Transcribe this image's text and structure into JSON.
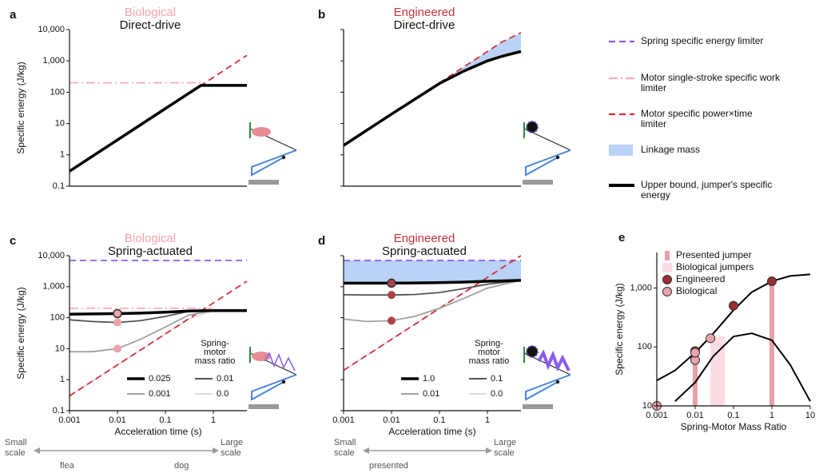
{
  "chart_data": [
    {
      "type": "line",
      "panel": "a",
      "title": "Biological",
      "title_color": "#f2a3ad",
      "subtitle": "Direct-drive",
      "ylabel": "Specific energy (J/kg)",
      "xscale": "log",
      "yscale": "log",
      "xlim": [
        0.001,
        5
      ],
      "ylim": [
        0.1,
        10000
      ],
      "yticks": [
        0.1,
        1,
        10,
        100,
        {
          "value": 1000,
          "label": "1,000"
        },
        {
          "value": 10000,
          "label": "10,000"
        }
      ],
      "ytick_labels": true,
      "x": [
        0.001,
        0.01,
        0.1,
        0.55,
        1,
        5
      ],
      "series": [
        {
          "color": "#f5aeb8",
          "style": "dashdot",
          "values": [
            200,
            200,
            200,
            200,
            null,
            null
          ]
        },
        {
          "color": "#d5303b",
          "style": "dashed",
          "values": [
            0.3,
            3,
            30,
            165,
            300,
            1500
          ]
        },
        {
          "color": "#000000",
          "style": "solid",
          "width": 3.5,
          "values": [
            0.3,
            3,
            30,
            165,
            165,
            165
          ]
        }
      ]
    },
    {
      "type": "line",
      "panel": "b",
      "title": "Engineered",
      "title_color": "#c8323c",
      "subtitle": "Direct-drive",
      "xscale": "log",
      "yscale": "log",
      "xlim": [
        0.001,
        5
      ],
      "ylim": [
        0.1,
        10000
      ],
      "yticks": [
        0.1,
        1,
        10,
        100,
        1000,
        10000
      ],
      "ytick_labels": false,
      "x": [
        0.001,
        0.01,
        0.1,
        0.3,
        1,
        2,
        5
      ],
      "series": [
        {
          "color": "#d5303b",
          "style": "dashed",
          "fill_below": "#b9d2f5",
          "values": [
            2,
            20,
            200,
            600,
            2000,
            4000,
            8000
          ]
        },
        {
          "color": "#000000",
          "style": "solid",
          "width": 3.5,
          "values": [
            2,
            20,
            190,
            450,
            1000,
            1400,
            2000
          ]
        }
      ]
    },
    {
      "type": "line",
      "panel": "c",
      "title": "Biological",
      "title_color": "#f2a3ad",
      "subtitle": "Spring-actuated",
      "ylabel": "Specific energy (J/kg)",
      "xlabel": "Acceleration time (s)",
      "xscale": "log",
      "yscale": "log",
      "xlim": [
        0.001,
        5
      ],
      "ylim": [
        0.1,
        10000
      ],
      "xticks": [
        0.001,
        0.01,
        0.1,
        1
      ],
      "yticks": [
        0.1,
        1,
        10,
        100,
        {
          "value": 1000,
          "label": "1,000"
        },
        {
          "value": 10000,
          "label": "10,000"
        }
      ],
      "ytick_labels": true,
      "legend": "lower right",
      "legend_title": [
        "Spring-",
        "motor",
        "mass ratio"
      ],
      "x": [
        0.001,
        0.003,
        0.01,
        0.03,
        0.1,
        0.3,
        1,
        5
      ],
      "series": [
        {
          "color": "#8b5cf0",
          "style": "dashed",
          "values": [
            7000,
            7000,
            7000,
            7000,
            7000,
            7000,
            7000,
            7000
          ]
        },
        {
          "color": "#f5aeb8",
          "style": "dashdot",
          "values": [
            200,
            200,
            200,
            200,
            200,
            200,
            200,
            null
          ]
        },
        {
          "color": "#dddddd",
          "style": "solid",
          "name": "0.0",
          "values": [
            0.3,
            0.9,
            3,
            9,
            30,
            90,
            170,
            170
          ]
        },
        {
          "color": "#d5303b",
          "style": "dashed",
          "values": [
            0.3,
            0.9,
            3,
            9,
            30,
            90,
            300,
            1500
          ]
        },
        {
          "color": "#a0a0a0",
          "style": "solid",
          "name": "0.001",
          "values": [
            8,
            8,
            10,
            20,
            50,
            120,
            170,
            170
          ]
        },
        {
          "color": "#555555",
          "style": "solid",
          "name": "0.01",
          "values": [
            85,
            75,
            70,
            80,
            110,
            160,
            170,
            170
          ]
        },
        {
          "color": "#000000",
          "style": "solid",
          "width": 3.5,
          "name": "0.025",
          "values": [
            130,
            132,
            135,
            140,
            150,
            165,
            170,
            170
          ]
        }
      ],
      "legend_order": [
        6,
        5,
        4,
        2
      ],
      "markers": {
        "color": "#eca4ac",
        "x": [
          0.01,
          0.01,
          0.01
        ],
        "values": [
          135,
          70,
          10
        ]
      }
    },
    {
      "type": "line",
      "panel": "d",
      "title": "Engineered",
      "title_color": "#c8323c",
      "subtitle": "Spring-actuated",
      "xlabel": "Acceleration time (s)",
      "xscale": "log",
      "yscale": "log",
      "xlim": [
        0.001,
        5
      ],
      "ylim": [
        0.1,
        10000
      ],
      "xticks": [
        0.001,
        0.01,
        0.1,
        1
      ],
      "yticks": [
        0.1,
        1,
        10,
        100,
        1000,
        10000
      ],
      "ytick_labels": false,
      "legend": "lower right",
      "legend_title": [
        "Spring-",
        "motor",
        "mass ratio"
      ],
      "x": [
        0.001,
        0.003,
        0.01,
        0.03,
        0.1,
        0.3,
        1,
        5
      ],
      "series": [
        {
          "color": "#8b5cf0",
          "style": "dashed",
          "fill_below": "#b9d2f5",
          "values": [
            7000,
            7000,
            7000,
            7000,
            7000,
            7000,
            7000,
            7000
          ]
        },
        {
          "color": "#dddddd",
          "style": "solid",
          "name": "0.0",
          "values": [
            2,
            6,
            20,
            60,
            200,
            600,
            1600,
            1600
          ]
        },
        {
          "color": "#d5303b",
          "style": "dashed",
          "values": [
            2,
            6,
            20,
            60,
            200,
            600,
            2000,
            10000
          ]
        },
        {
          "color": "#a0a0a0",
          "style": "solid",
          "name": "0.01",
          "values": [
            90,
            75,
            80,
            110,
            200,
            400,
            900,
            1600
          ]
        },
        {
          "color": "#555555",
          "style": "solid",
          "name": "0.1",
          "values": [
            550,
            540,
            540,
            560,
            650,
            850,
            1200,
            1600
          ]
        },
        {
          "color": "#000000",
          "style": "solid",
          "width": 3.5,
          "name": "1.0",
          "values": [
            1300,
            1300,
            1300,
            1320,
            1350,
            1400,
            1500,
            1600
          ]
        }
      ],
      "legend_order": [
        5,
        4,
        3,
        1
      ],
      "markers": {
        "color": "#b04048",
        "x": [
          0.01,
          0.01,
          0.01
        ],
        "values": [
          1300,
          540,
          80
        ]
      }
    },
    {
      "type": "scatter-line",
      "panel": "e",
      "ylabel": "Specific energy (J/kg)",
      "xlabel": "Spring-Motor Mass Ratio",
      "xscale": "log",
      "yscale": "log",
      "xlim": [
        0.001,
        10
      ],
      "ylim": [
        10,
        4000
      ],
      "xticks": [
        0.001,
        0.01,
        0.1,
        1,
        10
      ],
      "yticks": [
        10,
        100,
        {
          "value": 1000,
          "label": "1,000"
        }
      ],
      "ytick_labels": true,
      "legend": "upper left",
      "x": [
        0.001,
        0.003,
        0.01,
        0.03,
        0.1,
        0.3,
        1,
        3,
        10
      ],
      "series": [
        {
          "color": "#000000",
          "style": "solid",
          "width": 2,
          "values": [
            27,
            40,
            80,
            170,
            420,
            850,
            1300,
            1600,
            1700
          ]
        },
        {
          "color": "#000000",
          "style": "solid",
          "width": 2,
          "values": [
            null,
            12,
            25,
            70,
            150,
            170,
            130,
            50,
            12
          ]
        }
      ],
      "bars": {
        "name": "Presented jumper",
        "color": "#e8a0a8",
        "x": [
          0.01,
          1
        ],
        "values": [
          80,
          1300
        ]
      },
      "span": {
        "name": "Biological jumpers",
        "color": "#fbdde1",
        "x": [
          0.025,
          0.06
        ],
        "top": 150
      },
      "marker_sets": [
        {
          "name": "Engineered",
          "color": "#9b2f35",
          "x": [
            0.01,
            0.1,
            1
          ],
          "values": [
            85,
            500,
            1300
          ]
        },
        {
          "name": "Biological",
          "color": "#eca4ac",
          "x": [
            0.001,
            0.01,
            0.01,
            0.025
          ],
          "values": [
            10,
            60,
            80,
            140
          ]
        }
      ]
    }
  ],
  "legend": [
    {
      "label": "Spring specific energy limiter",
      "color": "#8b5cf0",
      "style": "dashed"
    },
    {
      "label": "Motor single-stroke specific work limiter",
      "color": "#f5aeb8",
      "style": "dashdot"
    },
    {
      "label": "Motor specific power×time limiter",
      "color": "#d5303b",
      "style": "dashed"
    },
    {
      "label": "Linkage mass",
      "color": "#b9d2f5",
      "style": "box"
    },
    {
      "label": "Upper bound, jumper's specific energy",
      "color": "#000000",
      "style": "solid"
    }
  ],
  "scale_bars": [
    {
      "left": "Small scale",
      "right": "Large scale",
      "marks": [
        "flea",
        "dog"
      ]
    },
    {
      "left": "Small scale",
      "right": "Large scale",
      "marks": [
        "presented"
      ]
    }
  ]
}
